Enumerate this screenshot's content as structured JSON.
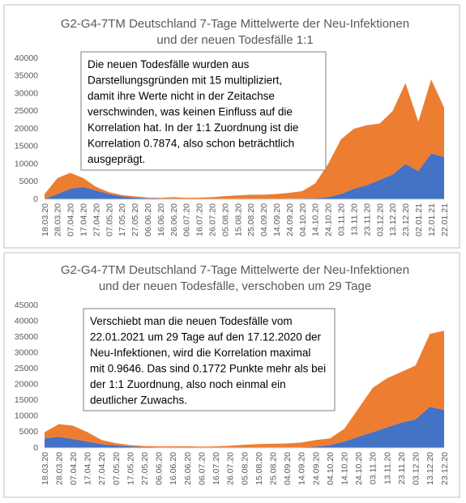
{
  "chart_data": [
    {
      "type": "stacked-area",
      "title": [
        "G2-G4-7TM Deutschland 7-Tage Mittelwerte der Neu-Infektionen",
        "und der neuen Todesfälle 1:1"
      ],
      "annotation": [
        "Die neuen Todesfälle wurden aus",
        "Darstellungsgründen mit 15 multipliziert,",
        "damit ihre Werte nicht in der Zeitachse",
        "verschwinden, was keinen Einfluss auf die",
        "Korrelation hat. In der 1:1 Zuordnung ist die",
        "Korrelation 0.7874, also schon beträchtlich",
        "ausgeprägt."
      ],
      "categories": [
        "18.03.20",
        "28.03.20",
        "07.04.20",
        "17.04.20",
        "27.04.20",
        "07.05.20",
        "17.05.20",
        "27.05.20",
        "06.06.20",
        "16.06.20",
        "26.06.20",
        "06.07.20",
        "16.07.20",
        "26.07.20",
        "05.08.20",
        "15.08.20",
        "25.08.20",
        "04.09.20",
        "14.09.20",
        "24.09.20",
        "04.10.20",
        "14.10.20",
        "24.10.20",
        "03.11.20",
        "13.11.20",
        "23.11.20",
        "03.12.20",
        "13.12.20",
        "23.12.20",
        "02.01.21",
        "12.01.21",
        "22.01.21"
      ],
      "series": [
        {
          "color": "#4472c4",
          "values": [
            100,
            1500,
            3000,
            3500,
            2500,
            1500,
            800,
            500,
            300,
            200,
            150,
            100,
            80,
            80,
            80,
            80,
            80,
            100,
            100,
            150,
            200,
            300,
            600,
            1500,
            3000,
            4000,
            5500,
            7000,
            10000,
            8000,
            13000,
            12000
          ]
        },
        {
          "color": "#ed7d31",
          "values": [
            1400,
            4500,
            4500,
            2500,
            1000,
            500,
            400,
            300,
            200,
            200,
            450,
            300,
            370,
            520,
            820,
            1020,
            1220,
            1200,
            1400,
            1650,
            2100,
            4200,
            9400,
            15500,
            17000,
            17000,
            16000,
            18000,
            23000,
            14000,
            21000,
            14000
          ]
        }
      ],
      "ylim": [
        0,
        40000
      ],
      "yticks": [
        0,
        5000,
        10000,
        15000,
        20000,
        25000,
        30000,
        35000,
        40000
      ],
      "grid": false
    },
    {
      "type": "stacked-area",
      "title": [
        "G2-G4-7TM Deutschland 7-Tage Mittelwerte der Neu-Infektionen",
        "und der neuen Todesfälle, verschoben um 29 Tage"
      ],
      "annotation": [
        "Verschiebt man die neuen Todesfälle vom",
        "22.01.2021 um 29 Tage auf den 17.12.2020 der",
        "Neu-Infektionen, wird die Korrelation maximal",
        "mit 0.9646. Das sind 0.1772 Punkte mehr als bei",
        "der 1:1 Zuordnung, also noch einmal ein",
        "deutlicher Zuwachs."
      ],
      "categories": [
        "18.03.20",
        "28.03.20",
        "07.04.20",
        "17.04.20",
        "27.04.20",
        "07.05.20",
        "17.05.20",
        "27.05.20",
        "06.06.20",
        "16.06.20",
        "26.06.20",
        "06.07.20",
        "16.07.20",
        "26.07.20",
        "05.08.20",
        "15.08.20",
        "25.08.20",
        "04.09.20",
        "14.09.20",
        "24.09.20",
        "04.10.20",
        "14.10.20",
        "24.10.20",
        "03.11.20",
        "13.11.20",
        "23.11.20",
        "03.12.20",
        "13.12.20",
        "23.12.20"
      ],
      "series": [
        {
          "color": "#4472c4",
          "values": [
            3000,
            3500,
            2800,
            2000,
            1200,
            800,
            500,
            300,
            200,
            150,
            100,
            80,
            80,
            80,
            100,
            100,
            150,
            150,
            200,
            400,
            900,
            2000,
            3500,
            5000,
            6500,
            8000,
            9000,
            13000,
            12000
          ]
        },
        {
          "color": "#ed7d31",
          "values": [
            2000,
            4000,
            4200,
            3000,
            1300,
            700,
            400,
            300,
            300,
            350,
            400,
            320,
            420,
            620,
            900,
            1100,
            1150,
            1250,
            1500,
            2100,
            2100,
            4000,
            9000,
            14000,
            15500,
            16000,
            17000,
            23000,
            25000
          ]
        }
      ],
      "ylim": [
        0,
        45000
      ],
      "yticks": [
        0,
        5000,
        10000,
        15000,
        20000,
        25000,
        30000,
        35000,
        40000,
        45000
      ],
      "grid": false
    }
  ]
}
